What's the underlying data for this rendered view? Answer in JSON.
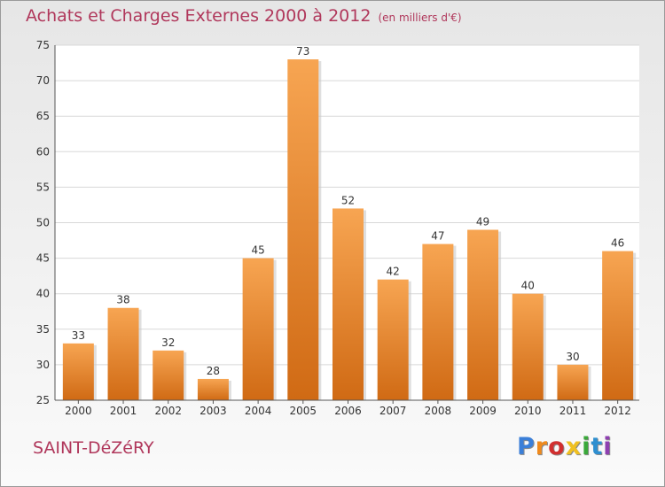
{
  "header": {
    "title": "Achats et Charges Externes 2000 à 2012",
    "unit": "(en milliers d'€)"
  },
  "footer": {
    "place": "SAINT-DéZéRY",
    "logo_letters": [
      "P",
      "r",
      "o",
      "x",
      "i",
      "t",
      "i"
    ]
  },
  "chart_data": {
    "type": "bar",
    "title": "Achats et Charges Externes 2000 à 2012",
    "subtitle": "(en milliers d'€)",
    "categories": [
      "2000",
      "2001",
      "2002",
      "2003",
      "2004",
      "2005",
      "2006",
      "2007",
      "2008",
      "2009",
      "2010",
      "2011",
      "2012"
    ],
    "values": [
      33,
      38,
      32,
      28,
      45,
      73,
      52,
      42,
      47,
      49,
      40,
      30,
      46
    ],
    "ylim": [
      25,
      75
    ],
    "yticks": [
      25,
      30,
      35,
      40,
      45,
      50,
      55,
      60,
      65,
      70,
      75
    ],
    "grid": true,
    "bar_color": "#f0902e",
    "xlabel": "",
    "ylabel": ""
  }
}
